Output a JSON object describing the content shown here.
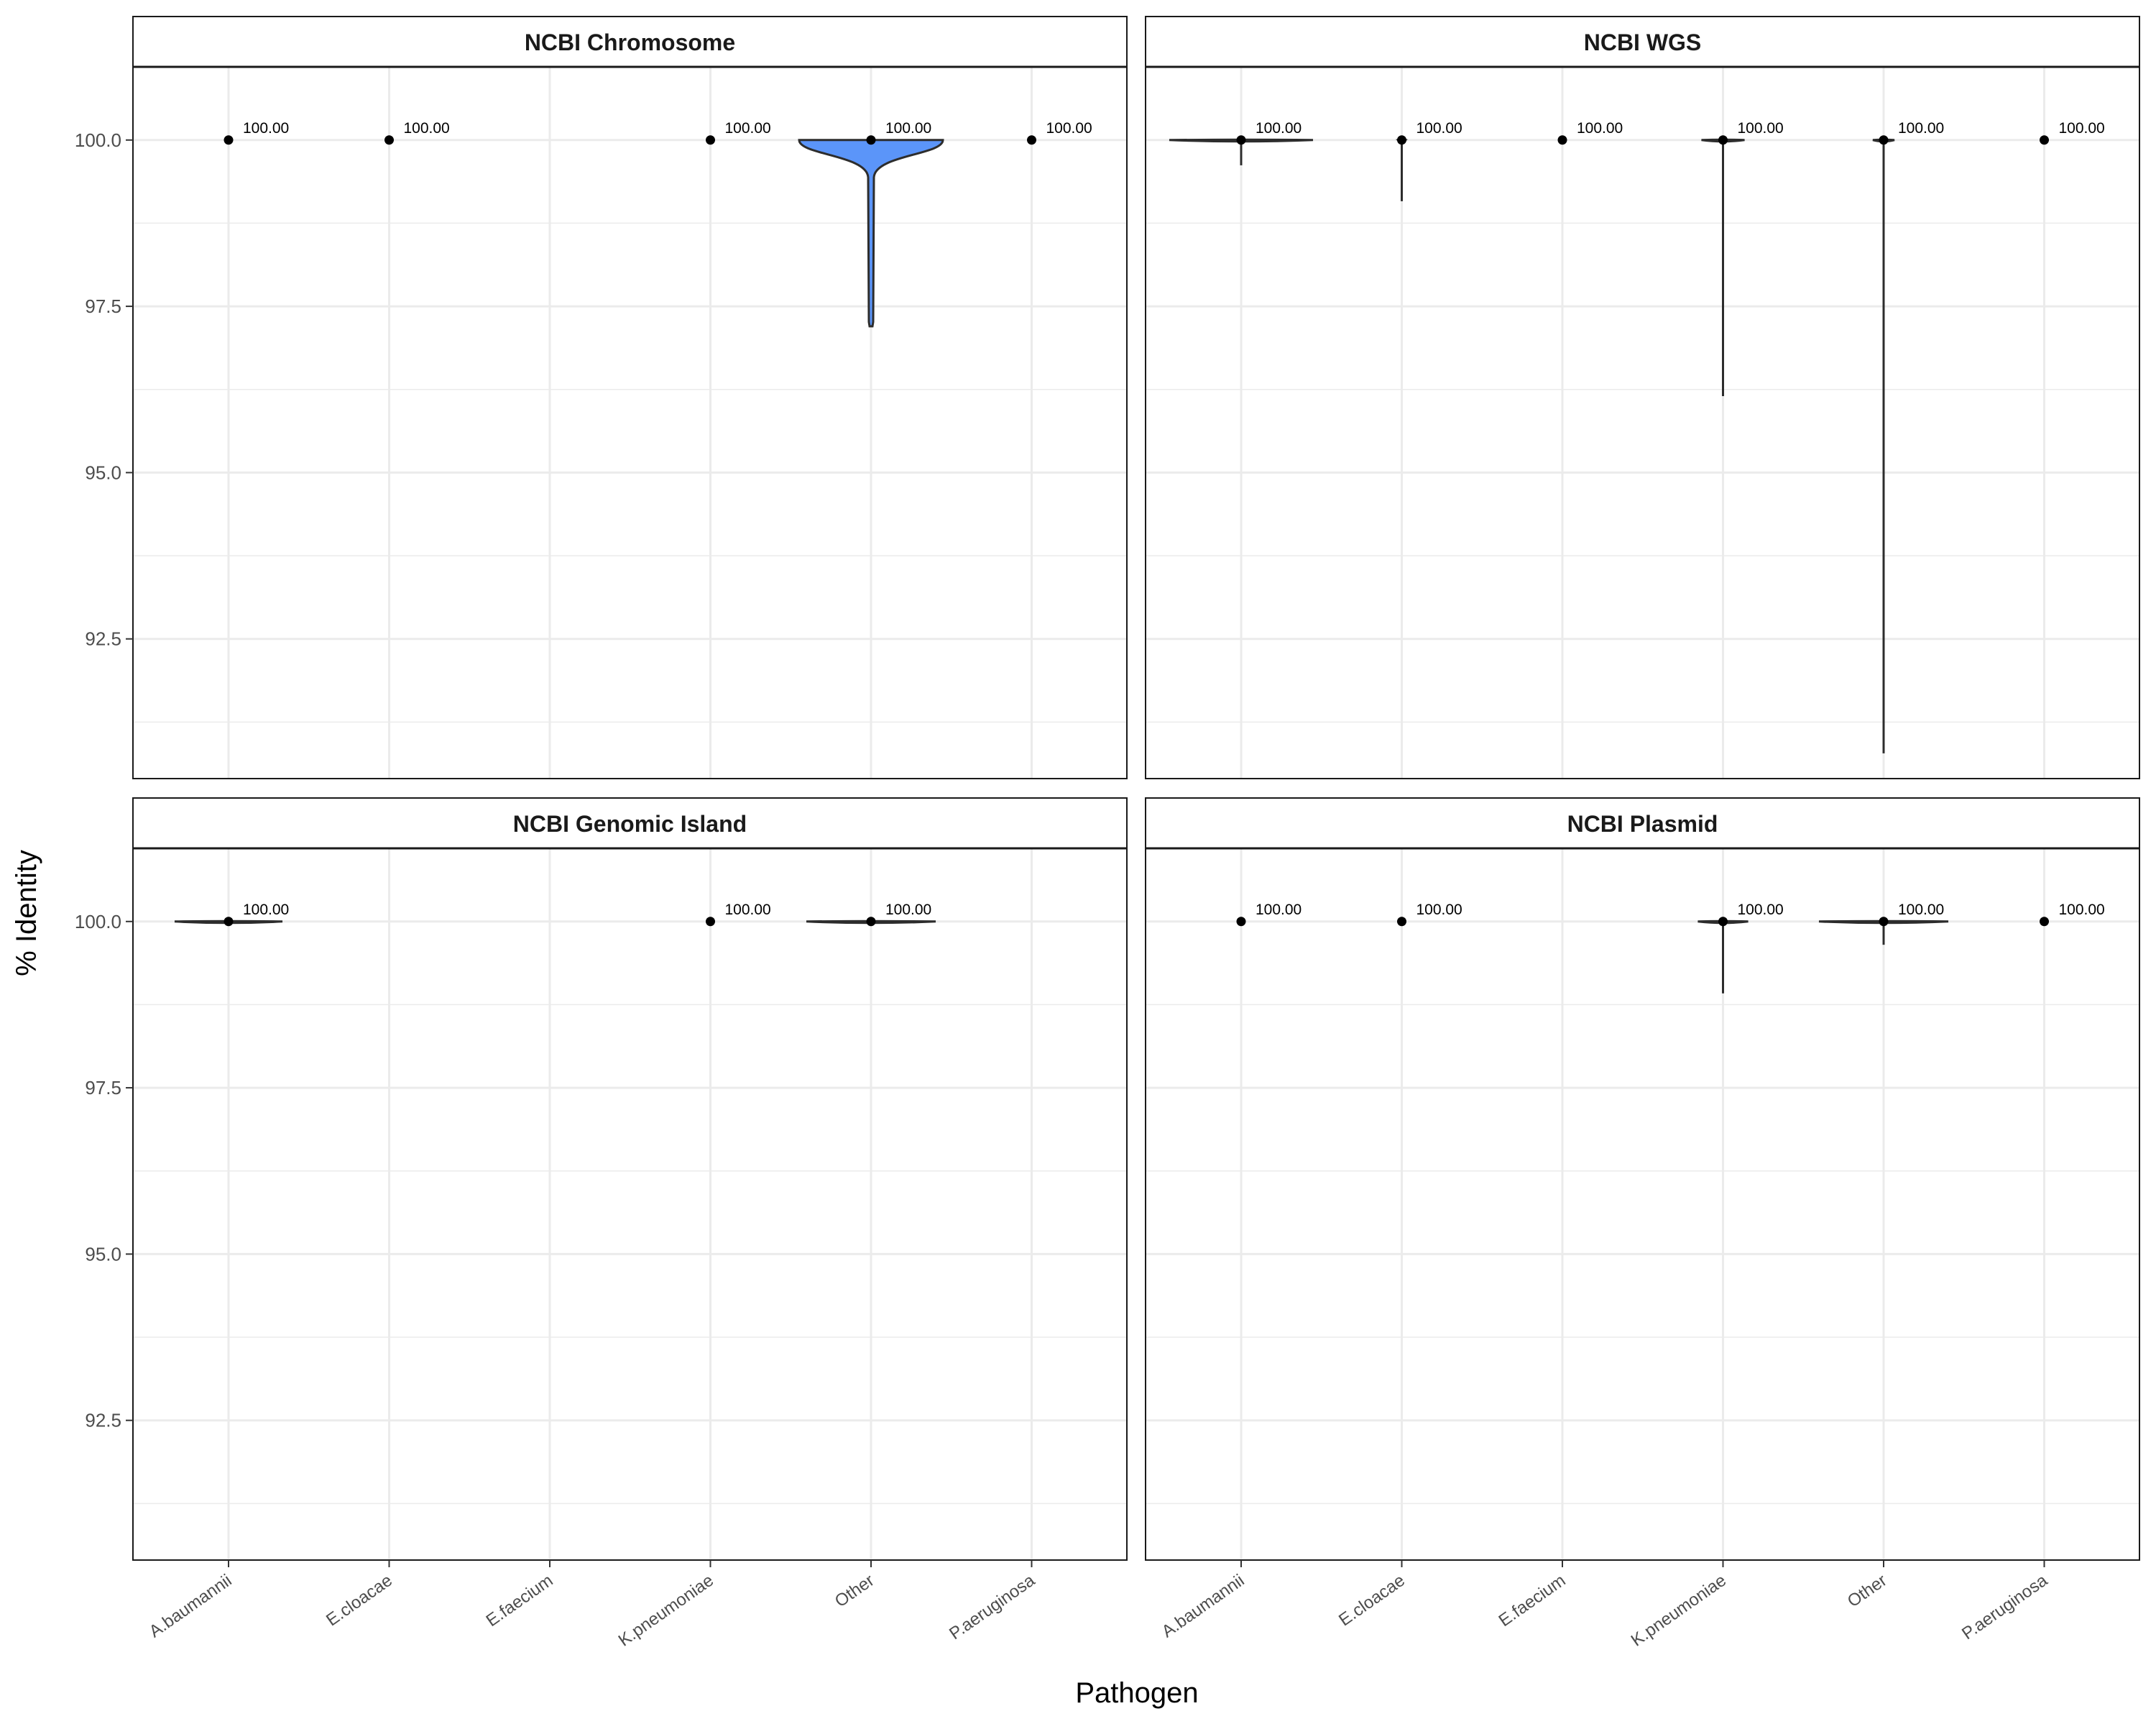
{
  "chart_data": {
    "type": "violin",
    "xlabel": "Pathogen",
    "ylabel": "% Identity",
    "ylim": [
      90.4,
      101.1
    ],
    "yticks": [
      92.5,
      95.0,
      97.5,
      100.0
    ],
    "ytick_labels": [
      "92.5",
      "95.0",
      "97.5",
      "100.0"
    ],
    "categories": [
      "A.baumannii",
      "E.cloacae",
      "E.faecium",
      "K.pneumoniae",
      "Other",
      "P.aeruginosa"
    ],
    "colors": {
      "violin_fill": "#5b95f9",
      "violin_stroke": "#2d2d2d",
      "point": "#000000",
      "grid": "#ebebeb",
      "strip_fill": "#ffffff",
      "strip_border": "#1a1a1a"
    },
    "panels": [
      {
        "title": "NCBI Chromosome",
        "groups": [
          {
            "category": "A.baumannii",
            "median": 100.0,
            "label": "100.00",
            "min": 100.0,
            "width": 0,
            "filled": false
          },
          {
            "category": "E.cloacae",
            "median": 100.0,
            "label": "100.00",
            "min": 100.0,
            "width": 0,
            "filled": false
          },
          {
            "category": "K.pneumoniae",
            "median": 100.0,
            "label": "100.00",
            "min": 100.0,
            "width": 0,
            "filled": false
          },
          {
            "category": "Other",
            "median": 100.0,
            "label": "100.00",
            "min": 97.2,
            "width": 1.0,
            "filled": true
          },
          {
            "category": "P.aeruginosa",
            "median": 100.0,
            "label": "100.00",
            "min": 100.0,
            "width": 0,
            "filled": false
          }
        ]
      },
      {
        "title": "NCBI WGS",
        "groups": [
          {
            "category": "A.baumannii",
            "median": 100.0,
            "label": "100.00",
            "min": 99.62,
            "width": 1.0,
            "filled": false
          },
          {
            "category": "E.cloacae",
            "median": 100.0,
            "label": "100.00",
            "min": 99.08,
            "width": 0.05,
            "filled": false
          },
          {
            "category": "E.faecium",
            "median": 100.0,
            "label": "100.00",
            "min": 100.0,
            "width": 0,
            "filled": false
          },
          {
            "category": "K.pneumoniae",
            "median": 100.0,
            "label": "100.00",
            "min": 96.15,
            "width": 0.3,
            "filled": false
          },
          {
            "category": "Other",
            "median": 100.0,
            "label": "100.00",
            "min": 90.78,
            "width": 0.15,
            "filled": false
          },
          {
            "category": "P.aeruginosa",
            "median": 100.0,
            "label": "100.00",
            "min": 100.0,
            "width": 0,
            "filled": false
          }
        ]
      },
      {
        "title": "NCBI Genomic Island",
        "groups": [
          {
            "category": "A.baumannii",
            "median": 100.0,
            "label": "100.00",
            "min": 100.0,
            "width": 0.75,
            "filled": false
          },
          {
            "category": "K.pneumoniae",
            "median": 100.0,
            "label": "100.00",
            "min": 100.0,
            "width": 0,
            "filled": false
          },
          {
            "category": "Other",
            "median": 100.0,
            "label": "100.00",
            "min": 100.0,
            "width": 0.9,
            "filled": false
          }
        ]
      },
      {
        "title": "NCBI Plasmid",
        "groups": [
          {
            "category": "A.baumannii",
            "median": 100.0,
            "label": "100.00",
            "min": 100.0,
            "width": 0,
            "filled": false
          },
          {
            "category": "E.cloacae",
            "median": 100.0,
            "label": "100.00",
            "min": 100.0,
            "width": 0,
            "filled": false
          },
          {
            "category": "K.pneumoniae",
            "median": 100.0,
            "label": "100.00",
            "min": 98.92,
            "width": 0.35,
            "filled": false
          },
          {
            "category": "Other",
            "median": 100.0,
            "label": "100.00",
            "min": 99.65,
            "width": 0.9,
            "filled": false
          },
          {
            "category": "P.aeruginosa",
            "median": 100.0,
            "label": "100.00",
            "min": 100.0,
            "width": 0,
            "filled": false
          }
        ]
      }
    ]
  }
}
